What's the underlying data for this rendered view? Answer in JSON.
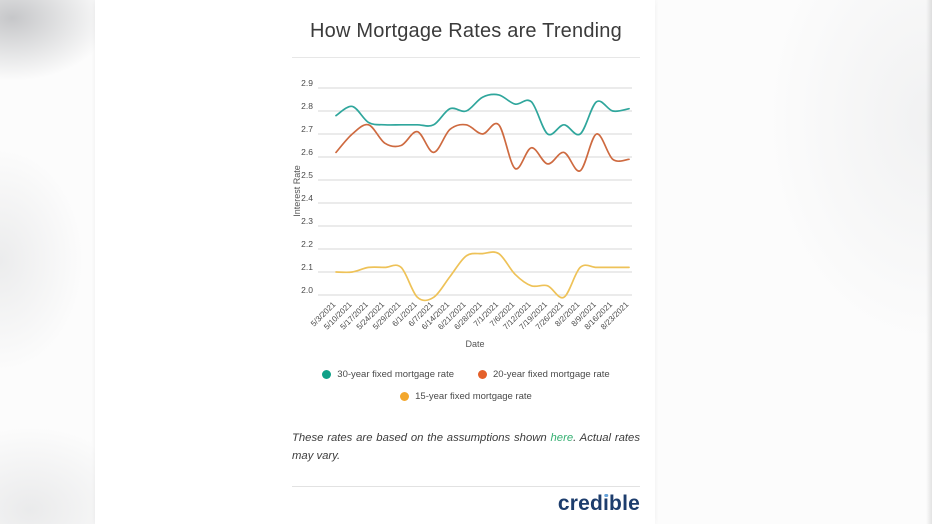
{
  "page": {
    "title": "How Mortgage Rates are Trending",
    "footnote": {
      "pre": "These rates are based on the assumptions shown ",
      "link": "here",
      "post": ". Actual rates may vary."
    },
    "brand": {
      "pre": "cred",
      "stem": "ı",
      "post": "ble",
      "full": "credible"
    }
  },
  "chart_data": {
    "type": "line",
    "title": "How Mortgage Rates are Trending",
    "xlabel": "Date",
    "ylabel": "Interest Rate",
    "ylim": [
      2.0,
      2.9
    ],
    "ytick_step": 0.1,
    "grid": true,
    "legend_position": "bottom",
    "categories": [
      "5/3/2021",
      "5/10/2021",
      "5/17/2021",
      "5/24/2021",
      "5/29/2021",
      "6/1/2021",
      "6/7/2021",
      "6/14/2021",
      "6/21/2021",
      "6/28/2021",
      "7/1/2021",
      "7/6/2021",
      "7/12/2021",
      "7/19/2021",
      "7/26/2021",
      "8/2/2021",
      "8/9/2021",
      "8/16/2021",
      "8/23/2021"
    ],
    "series": [
      {
        "name": "30-year fixed mortgage rate",
        "color": "#2fa69c",
        "dot": "#10a188",
        "values": [
          2.78,
          2.82,
          2.75,
          2.74,
          2.74,
          2.74,
          2.74,
          2.81,
          2.8,
          2.86,
          2.87,
          2.83,
          2.84,
          2.7,
          2.74,
          2.7,
          2.84,
          2.8,
          2.81
        ]
      },
      {
        "name": "20-year fixed mortgage rate",
        "color": "#ce6a40",
        "dot": "#e4602a",
        "values": [
          2.62,
          2.7,
          2.74,
          2.66,
          2.65,
          2.71,
          2.62,
          2.72,
          2.74,
          2.7,
          2.74,
          2.55,
          2.64,
          2.57,
          2.62,
          2.54,
          2.7,
          2.59,
          2.59
        ]
      },
      {
        "name": "15-year fixed mortgage rate",
        "color": "#eec258",
        "dot": "#f3a72d",
        "values": [
          2.1,
          2.1,
          2.12,
          2.12,
          2.12,
          1.99,
          1.99,
          2.08,
          2.17,
          2.18,
          2.18,
          2.09,
          2.04,
          2.04,
          1.99,
          2.12,
          2.12,
          2.12,
          2.12
        ]
      }
    ]
  }
}
